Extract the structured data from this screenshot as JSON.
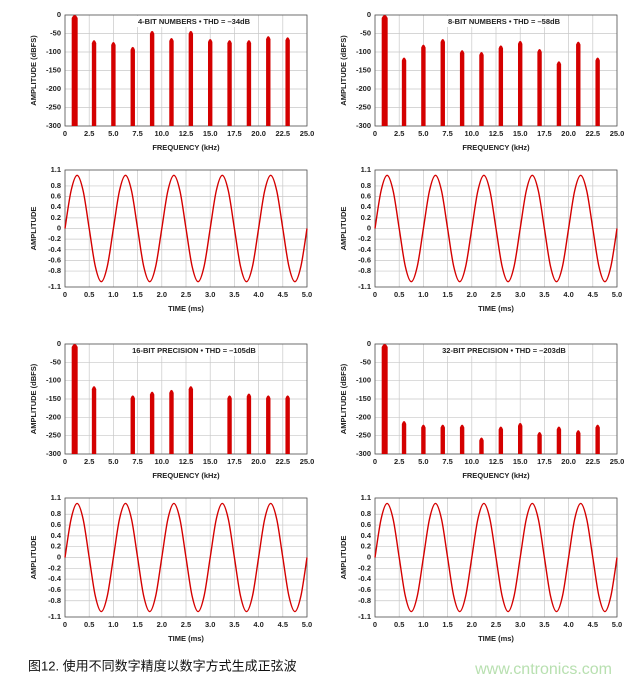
{
  "chart_data": [
    {
      "type": "spectrum",
      "title": "4-BIT NUMBERS • THD = –34dB",
      "xlabel": "FREQUENCY (kHz)",
      "ylabel": "AMPLITUDE (dBFS)",
      "color": "#d40000",
      "grid": true,
      "x": [
        1,
        3,
        5,
        7,
        9,
        11,
        13,
        15,
        17,
        19,
        21,
        23
      ],
      "values": [
        0,
        -68,
        -73,
        -86,
        -43,
        -62,
        -43,
        -65,
        -68,
        -68,
        -57,
        -60
      ],
      "xlim": [
        0,
        25
      ],
      "xticks": [
        0,
        2.5,
        {
          "value": 5,
          "label": "5.0"
        },
        7.5,
        {
          "value": 10,
          "label": "10.0"
        },
        12.5,
        {
          "value": 15,
          "label": "15.0"
        },
        17.5,
        {
          "value": 20,
          "label": "20.0"
        },
        22.5,
        {
          "value": 25,
          "label": "25.0"
        }
      ],
      "ylim": [
        -300,
        0
      ],
      "yticks": [
        -300,
        -250,
        -200,
        -150,
        -100,
        -50,
        0
      ]
    },
    {
      "type": "spectrum",
      "title": "8-BIT NUMBERS • THD = –58dB",
      "xlabel": "FREQUENCY (kHz)",
      "ylabel": "AMPLITUDE (dBFS)",
      "color": "#d40000",
      "grid": true,
      "x": [
        1,
        3,
        5,
        7,
        9,
        11,
        13,
        15,
        17,
        19,
        21,
        23
      ],
      "values": [
        0,
        -115,
        -80,
        -65,
        -95,
        -100,
        -82,
        -70,
        -92,
        -125,
        -72,
        -115
      ],
      "xlim": [
        0,
        25
      ],
      "xticks": [
        0,
        2.5,
        {
          "value": 5,
          "label": "5.0"
        },
        7.5,
        {
          "value": 10,
          "label": "10.0"
        },
        12.5,
        {
          "value": 15,
          "label": "15.0"
        },
        17.5,
        {
          "value": 20,
          "label": "20.0"
        },
        22.5,
        {
          "value": 25,
          "label": "25.0"
        }
      ],
      "ylim": [
        -300,
        0
      ],
      "yticks": [
        -300,
        -250,
        -200,
        -150,
        -100,
        -50,
        0
      ]
    },
    {
      "type": "line",
      "xlabel": "TIME (ms)",
      "ylabel": "AMPLITUDE",
      "color": "#d40000",
      "grid": true,
      "x": [
        0,
        0.125,
        0.25,
        0.375,
        0.5,
        0.625,
        0.75,
        0.875,
        1,
        1.125,
        1.25,
        1.375,
        1.5,
        1.625,
        1.75,
        1.875,
        2,
        2.125,
        2.25,
        2.375,
        2.5,
        2.625,
        2.75,
        2.875,
        3,
        3.125,
        3.25,
        3.375,
        3.5,
        3.625,
        3.75,
        3.875,
        4,
        4.125,
        4.25,
        4.375,
        4.5,
        4.625,
        4.75,
        4.875,
        5
      ],
      "values": [
        0,
        0.707,
        1,
        0.707,
        0,
        -0.707,
        -1,
        -0.707,
        0,
        0.707,
        1,
        0.707,
        0,
        -0.707,
        -1,
        -0.707,
        0,
        0.707,
        1,
        0.707,
        0,
        -0.707,
        -1,
        -0.707,
        0,
        0.707,
        1,
        0.707,
        0,
        -0.707,
        -1,
        -0.707,
        0,
        0.707,
        1,
        0.707,
        0,
        -0.707,
        -1,
        -0.707,
        0
      ],
      "xlim": [
        0,
        5
      ],
      "xticks": [
        0,
        0.5,
        {
          "value": 1,
          "label": "1.0"
        },
        1.5,
        {
          "value": 2,
          "label": "2.0"
        },
        2.5,
        {
          "value": 3,
          "label": "3.0"
        },
        3.5,
        {
          "value": 4,
          "label": "4.0"
        },
        4.5,
        {
          "value": 5,
          "label": "5.0"
        }
      ],
      "ylim": [
        -1.1,
        1.1
      ],
      "yticks": [
        -1.1,
        -0.8,
        -0.6,
        -0.4,
        -0.2,
        0,
        0.2,
        0.4,
        0.6,
        0.8,
        1.1
      ]
    },
    {
      "type": "line",
      "xlabel": "TIME (ms)",
      "ylabel": "AMPLITUDE",
      "color": "#d40000",
      "grid": true,
      "x": [
        0,
        0.125,
        0.25,
        0.375,
        0.5,
        0.625,
        0.75,
        0.875,
        1,
        1.125,
        1.25,
        1.375,
        1.5,
        1.625,
        1.75,
        1.875,
        2,
        2.125,
        2.25,
        2.375,
        2.5,
        2.625,
        2.75,
        2.875,
        3,
        3.125,
        3.25,
        3.375,
        3.5,
        3.625,
        3.75,
        3.875,
        4,
        4.125,
        4.25,
        4.375,
        4.5,
        4.625,
        4.75,
        4.875,
        5
      ],
      "values": [
        0,
        0.707,
        1,
        0.707,
        0,
        -0.707,
        -1,
        -0.707,
        0,
        0.707,
        1,
        0.707,
        0,
        -0.707,
        -1,
        -0.707,
        0,
        0.707,
        1,
        0.707,
        0,
        -0.707,
        -1,
        -0.707,
        0,
        0.707,
        1,
        0.707,
        0,
        -0.707,
        -1,
        -0.707,
        0,
        0.707,
        1,
        0.707,
        0,
        -0.707,
        -1,
        -0.707,
        0
      ],
      "xlim": [
        0,
        5
      ],
      "xticks": [
        0,
        0.5,
        {
          "value": 1,
          "label": "1.0"
        },
        1.5,
        {
          "value": 2,
          "label": "2.0"
        },
        2.5,
        {
          "value": 3,
          "label": "3.0"
        },
        3.5,
        {
          "value": 4,
          "label": "4.0"
        },
        4.5,
        {
          "value": 5,
          "label": "5.0"
        }
      ],
      "ylim": [
        -1.1,
        1.1
      ],
      "yticks": [
        -1.1,
        -0.8,
        -0.6,
        -0.4,
        -0.2,
        0,
        0.2,
        0.4,
        0.6,
        0.8,
        1.1
      ]
    },
    {
      "type": "spectrum",
      "title": "16-BIT PRECISION • THD = –105dB",
      "xlabel": "FREQUENCY (kHz)",
      "ylabel": "AMPLITUDE (dBFS)",
      "color": "#d40000",
      "grid": true,
      "x": [
        1,
        3,
        7,
        9,
        11,
        13,
        17,
        19,
        21,
        23
      ],
      "values": [
        0,
        -115,
        -140,
        -130,
        -125,
        -115,
        -140,
        -135,
        -140,
        -140
      ],
      "xlim": [
        0,
        25
      ],
      "xticks": [
        0,
        2.5,
        {
          "value": 5,
          "label": "5.0"
        },
        7.5,
        {
          "value": 10,
          "label": "10.0"
        },
        12.5,
        {
          "value": 15,
          "label": "15.0"
        },
        17.5,
        {
          "value": 20,
          "label": "20.0"
        },
        22.5,
        {
          "value": 25,
          "label": "25.0"
        }
      ],
      "ylim": [
        -300,
        0
      ],
      "yticks": [
        -300,
        -250,
        -200,
        -150,
        -100,
        -50,
        0
      ]
    },
    {
      "type": "spectrum",
      "title": "32-BIT PRECISION • THD = –203dB",
      "xlabel": "FREQUENCY (kHz)",
      "ylabel": "AMPLITUDE (dBFS)",
      "color": "#d40000",
      "grid": true,
      "x": [
        1,
        3,
        5,
        7,
        9,
        11,
        13,
        15,
        17,
        19,
        21,
        23
      ],
      "values": [
        0,
        -210,
        -220,
        -220,
        -220,
        -255,
        -225,
        -215,
        -240,
        -225,
        -235,
        -220
      ],
      "xlim": [
        0,
        25
      ],
      "xticks": [
        0,
        2.5,
        {
          "value": 5,
          "label": "5.0"
        },
        7.5,
        {
          "value": 10,
          "label": "10.0"
        },
        12.5,
        {
          "value": 15,
          "label": "15.0"
        },
        17.5,
        {
          "value": 20,
          "label": "20.0"
        },
        22.5,
        {
          "value": 25,
          "label": "25.0"
        }
      ],
      "ylim": [
        -300,
        0
      ],
      "yticks": [
        -300,
        -250,
        -200,
        -150,
        -100,
        -50,
        0
      ]
    },
    {
      "type": "line",
      "xlabel": "TIME (ms)",
      "ylabel": "AMPLITUDE",
      "color": "#d40000",
      "grid": true,
      "x": [
        0,
        0.125,
        0.25,
        0.375,
        0.5,
        0.625,
        0.75,
        0.875,
        1,
        1.125,
        1.25,
        1.375,
        1.5,
        1.625,
        1.75,
        1.875,
        2,
        2.125,
        2.25,
        2.375,
        2.5,
        2.625,
        2.75,
        2.875,
        3,
        3.125,
        3.25,
        3.375,
        3.5,
        3.625,
        3.75,
        3.875,
        4,
        4.125,
        4.25,
        4.375,
        4.5,
        4.625,
        4.75,
        4.875,
        5
      ],
      "values": [
        0,
        0.707,
        1,
        0.707,
        0,
        -0.707,
        -1,
        -0.707,
        0,
        0.707,
        1,
        0.707,
        0,
        -0.707,
        -1,
        -0.707,
        0,
        0.707,
        1,
        0.707,
        0,
        -0.707,
        -1,
        -0.707,
        0,
        0.707,
        1,
        0.707,
        0,
        -0.707,
        -1,
        -0.707,
        0,
        0.707,
        1,
        0.707,
        0,
        -0.707,
        -1,
        -0.707,
        0
      ],
      "xlim": [
        0,
        5
      ],
      "xticks": [
        0,
        0.5,
        {
          "value": 1,
          "label": "1.0"
        },
        1.5,
        {
          "value": 2,
          "label": "2.0"
        },
        2.5,
        {
          "value": 3,
          "label": "3.0"
        },
        3.5,
        {
          "value": 4,
          "label": "4.0"
        },
        4.5,
        {
          "value": 5,
          "label": "5.0"
        }
      ],
      "ylim": [
        -1.1,
        1.1
      ],
      "yticks": [
        -1.1,
        -0.8,
        -0.6,
        -0.4,
        -0.2,
        0,
        0.2,
        0.4,
        0.6,
        0.8,
        1.1
      ]
    },
    {
      "type": "line",
      "xlabel": "TIME (ms)",
      "ylabel": "AMPLITUDE",
      "color": "#d40000",
      "grid": true,
      "x": [
        0,
        0.125,
        0.25,
        0.375,
        0.5,
        0.625,
        0.75,
        0.875,
        1,
        1.125,
        1.25,
        1.375,
        1.5,
        1.625,
        1.75,
        1.875,
        2,
        2.125,
        2.25,
        2.375,
        2.5,
        2.625,
        2.75,
        2.875,
        3,
        3.125,
        3.25,
        3.375,
        3.5,
        3.625,
        3.75,
        3.875,
        4,
        4.125,
        4.25,
        4.375,
        4.5,
        4.625,
        4.75,
        4.875,
        5
      ],
      "values": [
        0,
        0.707,
        1,
        0.707,
        0,
        -0.707,
        -1,
        -0.707,
        0,
        0.707,
        1,
        0.707,
        0,
        -0.707,
        -1,
        -0.707,
        0,
        0.707,
        1,
        0.707,
        0,
        -0.707,
        -1,
        -0.707,
        0,
        0.707,
        1,
        0.707,
        0,
        -0.707,
        -1,
        -0.707,
        0,
        0.707,
        1,
        0.707,
        0,
        -0.707,
        -1,
        -0.707,
        0
      ],
      "xlim": [
        0,
        5
      ],
      "xticks": [
        0,
        0.5,
        {
          "value": 1,
          "label": "1.0"
        },
        1.5,
        {
          "value": 2,
          "label": "2.0"
        },
        2.5,
        {
          "value": 3,
          "label": "3.0"
        },
        3.5,
        {
          "value": 4,
          "label": "4.0"
        },
        4.5,
        {
          "value": 5,
          "label": "5.0"
        }
      ],
      "ylim": [
        -1.1,
        1.1
      ],
      "yticks": [
        -1.1,
        -0.8,
        -0.6,
        -0.4,
        -0.2,
        0,
        0.2,
        0.4,
        0.6,
        0.8,
        1.1
      ]
    }
  ],
  "caption": "图12. 使用不同数字精度以数字方式生成正弦波",
  "watermark": "www.cntronics.com"
}
